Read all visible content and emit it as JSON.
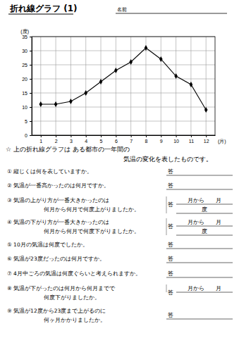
{
  "header": {
    "title": "折れ線グラフ (1)",
    "name_label": "名前"
  },
  "chart_data": {
    "type": "line",
    "x": [
      1,
      2,
      3,
      4,
      5,
      6,
      7,
      8,
      9,
      10,
      11,
      12
    ],
    "values": [
      11,
      11,
      12,
      15,
      19,
      23,
      26,
      31,
      27,
      21,
      18,
      9
    ],
    "xlim": [
      0.4,
      12.6
    ],
    "xticks": [
      1,
      2,
      3,
      4,
      5,
      6,
      7,
      8,
      9,
      10,
      11,
      12
    ],
    "ylim": [
      0,
      35
    ],
    "yticks": [
      0,
      5,
      10,
      15,
      20,
      25,
      30,
      35
    ],
    "x_label": "(月)",
    "y_label": "(度)",
    "color": "#000000",
    "marker": "diamond",
    "grid": true
  },
  "intro": [
    "☆ 上の折れ線グラフは ある都市の一年間の",
    "気温の変化を表したものです。"
  ],
  "answer_label": "答",
  "questions": [
    {
      "lines": [
        "① 縦じくは何を表していますか。"
      ]
    },
    {
      "lines": [
        "② 気温が一番高かったのは何月ですか。"
      ]
    },
    {
      "lines": [
        "③ 気温の上がり方が一番大きかったのは",
        "何月から何月で何度上がりましたか。"
      ],
      "answer": [
        "月から　　月",
        "度"
      ]
    },
    {
      "lines": [
        "④ 気温の下がり方が一番大きかったのは",
        "何月から何月で何度下がりましたか。"
      ],
      "answer": [
        "月から　　月",
        "度"
      ]
    },
    {
      "lines": [
        "⑤ 10月の気温は何度でしたか。"
      ]
    },
    {
      "lines": [
        "⑥ 気温が23度だったのは何月ですか。"
      ]
    },
    {
      "lines": [
        "⑦ 4月中ごろの気温は何度ぐらいと考えられますか。"
      ]
    },
    {
      "lines": [
        "⑧ 気温が下がったのは何月から何月までで",
        "何度下がりましたか。"
      ],
      "answer": [
        "月から　　月"
      ]
    },
    {
      "lines": [
        "⑨ 気温が12度から23度まで上がるのに",
        "何ヶ月かかりましたか。"
      ]
    }
  ]
}
